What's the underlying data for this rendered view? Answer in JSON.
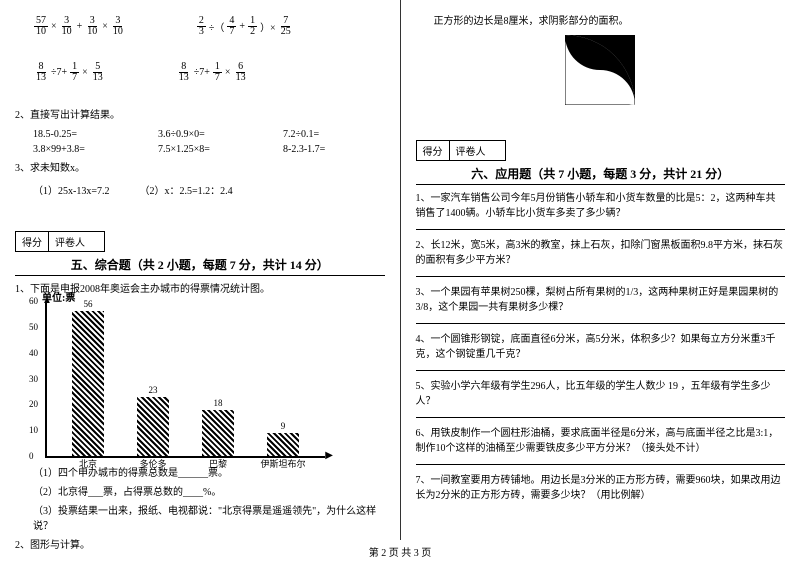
{
  "left": {
    "expr_rows": [
      {
        "a": {
          "parts": [
            {
              "f": [
                57,
                10
              ]
            },
            {
              "t": "×"
            },
            {
              "f": [
                3,
                10
              ]
            },
            {
              "t": "+"
            },
            {
              "f": [
                3,
                10
              ]
            },
            {
              "t": "×"
            },
            {
              "f": [
                3,
                10
              ]
            }
          ]
        },
        "b": {
          "parts": [
            {
              "f": [
                2,
                3
              ]
            },
            {
              "t": "÷（"
            },
            {
              "f": [
                4,
                7
              ]
            },
            {
              "t": "+"
            },
            {
              "f": [
                1,
                2
              ]
            },
            {
              "t": "）×"
            },
            {
              "f": [
                7,
                25
              ]
            }
          ]
        }
      },
      {
        "a": {
          "parts": [
            {
              "f": [
                8,
                13
              ]
            },
            {
              "t": "÷7+"
            },
            {
              "f": [
                1,
                7
              ]
            },
            {
              "t": "×"
            },
            {
              "f": [
                5,
                13
              ]
            }
          ]
        },
        "b": {
          "parts": [
            {
              "f": [
                8,
                13
              ]
            },
            {
              "t": "÷7+"
            },
            {
              "f": [
                1,
                7
              ]
            },
            {
              "t": "×"
            },
            {
              "f": [
                6,
                13
              ]
            }
          ]
        }
      }
    ],
    "q2": {
      "title": "2、直接写出计算结果。",
      "rows": [
        [
          "18.5-0.25=",
          "3.6÷0.9×0=",
          "7.2÷0.1="
        ],
        [
          "3.8×99+3.8=",
          "7.5×1.25×8=",
          "8-2.3-1.7="
        ]
      ]
    },
    "q3": {
      "title": "3、求未知数x。",
      "items": [
        "（1）25x-13x=7.2",
        "（2）x：2.5=1.2：2.4"
      ]
    },
    "section5": {
      "score_labels": [
        "得分",
        "评卷人"
      ],
      "title": "五、综合题（共 2 小题，每题 7 分，共计 14 分）",
      "q1_title": "1、下面是申报2008年奥运会主办城市的得票情况统计图。",
      "chart": {
        "unit": "单位:票",
        "ymax": 60,
        "ystep": 10,
        "bars": [
          {
            "label": "北京",
            "value": 56
          },
          {
            "label": "多伦多",
            "value": 23
          },
          {
            "label": "巴黎",
            "value": 18
          },
          {
            "label": "伊斯坦布尔",
            "value": 9
          }
        ],
        "bar_color": "#000000",
        "bg": "#ffffff"
      },
      "q1_subs": [
        "（1）四个申办城市的得票总数是______票。",
        "（2）北京得___票，占得票总数的____%。",
        "（3）投票结果一出来，报纸、电视都说：\"北京得票是遥遥领先\"，为什么这样说？"
      ],
      "q2_title": "2、图形与计算。"
    }
  },
  "right": {
    "shape_q": "正方形的边长是8厘米，求阴影部分的面积。",
    "section6": {
      "score_labels": [
        "得分",
        "评卷人"
      ],
      "title": "六、应用题（共 7 小题，每题 3 分，共计 21 分）",
      "items": [
        "1、一家汽车销售公司今年5月份销售小轿车和小货车数量的比是5：2，这两种车共销售了1400辆。小轿车比小货车多卖了多少辆？",
        "2、长12米，宽5米，高3米的教室，抹上石灰，扣除门窗黑板面积9.8平方米，抹石灰的面积有多少平方米？",
        "3、一个果园有苹果树250棵，梨树占所有果树的1/3，这两种果树正好是果园果树的3/8，这个果园一共有果树多少棵？",
        "4、一个圆锥形钢锭，底面直径6分米，高5分米，体积多少？如果每立方分米重3千克，这个钢锭重几千克？",
        "5、实验小学六年级有学生296人，比五年级的学生人数少 19 ，五年级有学生多少人？",
        "6、用铁皮制作一个圆柱形油桶，要求底面半径是6分米，高与底面半径之比是3:1，制作10个这样的油桶至少需要铁皮多少平方分米？（接头处不计）",
        "7、一间教室要用方砖铺地。用边长是3分米的正方形方砖，需要960块，如果改用边长为2分米的正方形方砖，需要多少块？（用比例解）"
      ]
    }
  },
  "footer": "第 2 页 共 3 页"
}
